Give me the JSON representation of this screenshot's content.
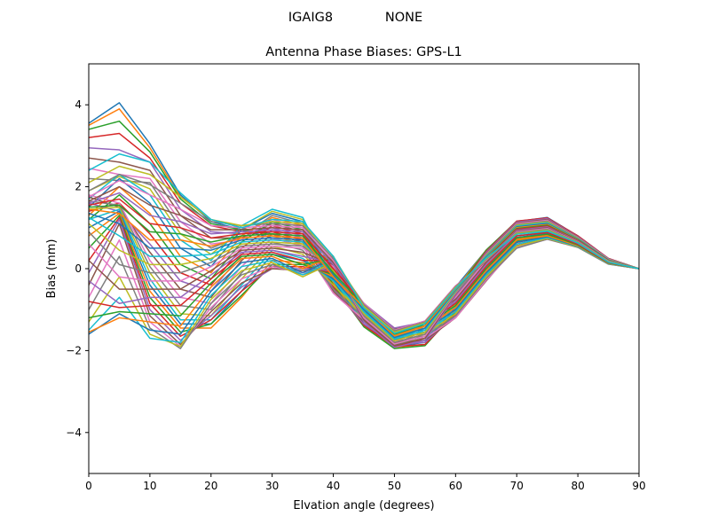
{
  "figure": {
    "suptitle_left": "IGAIG8",
    "suptitle_right": "NONE"
  },
  "chart_data": {
    "type": "line",
    "title": "Antenna Phase Biases: GPS-L1",
    "xlabel": "Elvation angle (degrees)",
    "ylabel": "Bias (mm)",
    "xlim": [
      0,
      90
    ],
    "ylim": [
      -5,
      5
    ],
    "xticks": [
      0,
      10,
      20,
      30,
      40,
      50,
      60,
      70,
      80,
      90
    ],
    "yticks": [
      -4,
      -2,
      0,
      2,
      4
    ],
    "ytick_labels": [
      "−4",
      "−2",
      "0",
      "2",
      "4"
    ],
    "grid": false,
    "legend": "none",
    "x": [
      0,
      5,
      10,
      15,
      20,
      25,
      30,
      35,
      40,
      45,
      50,
      55,
      60,
      65,
      70,
      75,
      80,
      85,
      90
    ],
    "colors": [
      "#1f77b4",
      "#ff7f0e",
      "#2ca02c",
      "#d62728",
      "#9467bd",
      "#8c564b",
      "#e377c2",
      "#7f7f7f",
      "#bcbd22",
      "#17becf"
    ],
    "series": [
      {
        "values": [
          3.55,
          4.05,
          3.05,
          1.8,
          1.15,
          0.95,
          0.75,
          0.55,
          0.2,
          -0.9,
          -1.5,
          -1.3,
          -0.45,
          0.45,
          1.15,
          1.25,
          0.8,
          0.25,
          0.0
        ]
      },
      {
        "values": [
          3.5,
          3.9,
          2.95,
          1.75,
          1.2,
          1.0,
          0.8,
          0.6,
          0.15,
          -0.95,
          -1.55,
          -1.35,
          -0.5,
          0.4,
          1.12,
          1.22,
          0.78,
          0.24,
          0.0
        ]
      },
      {
        "values": [
          3.4,
          3.6,
          2.85,
          1.7,
          1.1,
          0.95,
          0.85,
          0.65,
          0.1,
          -1.0,
          -1.6,
          -1.4,
          -0.55,
          0.35,
          1.08,
          1.18,
          0.76,
          0.23,
          0.0
        ]
      },
      {
        "values": [
          3.2,
          3.3,
          2.7,
          1.6,
          1.05,
          0.9,
          0.9,
          0.7,
          0.05,
          -1.05,
          -1.65,
          -1.45,
          -0.6,
          0.3,
          1.04,
          1.14,
          0.74,
          0.22,
          0.0
        ]
      },
      {
        "values": [
          2.95,
          2.9,
          2.6,
          1.45,
          0.9,
          0.85,
          1.0,
          0.8,
          0.0,
          -1.1,
          -1.7,
          -1.5,
          -0.65,
          0.25,
          1.0,
          1.1,
          0.72,
          0.21,
          0.0
        ]
      },
      {
        "values": [
          2.7,
          2.6,
          2.4,
          1.3,
          0.75,
          0.75,
          1.1,
          0.9,
          -0.05,
          -1.15,
          -1.75,
          -1.55,
          -0.7,
          0.2,
          0.96,
          1.06,
          0.7,
          0.2,
          0.0
        ]
      },
      {
        "values": [
          2.45,
          2.3,
          2.2,
          1.15,
          0.6,
          0.7,
          1.2,
          1.0,
          -0.1,
          -1.2,
          -1.8,
          -1.6,
          -0.75,
          0.15,
          0.92,
          1.02,
          0.68,
          0.19,
          0.0
        ]
      },
      {
        "values": [
          2.2,
          2.15,
          2.1,
          1.0,
          0.5,
          0.8,
          1.3,
          1.1,
          -0.15,
          -1.25,
          -1.82,
          -1.65,
          -0.8,
          0.1,
          0.88,
          0.98,
          0.66,
          0.18,
          0.0
        ]
      },
      {
        "values": [
          1.9,
          2.25,
          1.95,
          0.85,
          0.35,
          0.95,
          1.4,
          1.2,
          -0.2,
          -1.3,
          -1.85,
          -1.7,
          -0.85,
          0.05,
          0.84,
          0.94,
          0.64,
          0.17,
          0.0
        ]
      },
      {
        "values": [
          1.7,
          2.3,
          1.8,
          0.7,
          0.2,
          1.05,
          1.45,
          1.25,
          -0.25,
          -1.35,
          -1.88,
          -1.75,
          -0.9,
          0.0,
          0.8,
          0.9,
          0.62,
          0.16,
          0.0
        ]
      },
      {
        "values": [
          1.5,
          2.2,
          1.6,
          0.5,
          0.05,
          0.95,
          1.35,
          1.15,
          -0.3,
          -1.38,
          -1.9,
          -1.8,
          -0.95,
          -0.05,
          0.76,
          0.86,
          0.6,
          0.15,
          0.0
        ]
      },
      {
        "values": [
          1.3,
          2.0,
          1.35,
          0.3,
          -0.1,
          0.8,
          1.25,
          1.05,
          -0.35,
          -1.4,
          -1.92,
          -1.85,
          -1.0,
          -0.1,
          0.72,
          0.82,
          0.58,
          0.14,
          0.0
        ]
      },
      {
        "values": [
          1.2,
          1.8,
          1.1,
          0.1,
          -0.25,
          0.65,
          1.15,
          0.95,
          -0.4,
          -1.42,
          -1.95,
          -1.88,
          -1.05,
          -0.15,
          0.68,
          0.8,
          0.56,
          0.13,
          0.0
        ]
      },
      {
        "values": [
          1.4,
          1.6,
          0.85,
          -0.1,
          -0.4,
          0.5,
          1.05,
          0.85,
          -0.45,
          -1.38,
          -1.9,
          -1.85,
          -1.1,
          -0.2,
          0.64,
          0.78,
          0.55,
          0.13,
          0.0
        ]
      },
      {
        "values": [
          1.6,
          1.4,
          0.6,
          -0.3,
          -0.55,
          0.35,
          0.95,
          0.75,
          -0.5,
          -1.35,
          -1.85,
          -1.8,
          -1.15,
          -0.25,
          0.6,
          0.76,
          0.54,
          0.12,
          0.0
        ]
      },
      {
        "values": [
          1.75,
          1.5,
          0.4,
          -0.5,
          -0.7,
          0.2,
          0.85,
          0.65,
          -0.55,
          -1.3,
          -1.8,
          -1.75,
          -1.2,
          -0.3,
          0.56,
          0.74,
          0.53,
          0.12,
          0.0
        ]
      },
      {
        "values": [
          1.8,
          1.6,
          0.2,
          -0.7,
          -0.85,
          0.05,
          0.75,
          0.55,
          -0.6,
          -1.25,
          -1.75,
          -1.7,
          -1.2,
          -0.28,
          0.52,
          0.72,
          0.52,
          0.11,
          0.0
        ]
      },
      {
        "values": [
          1.65,
          1.55,
          0.05,
          -0.9,
          -1.0,
          -0.1,
          0.65,
          0.45,
          -0.5,
          -1.2,
          -1.7,
          -1.65,
          -1.15,
          -0.24,
          0.5,
          0.72,
          0.52,
          0.11,
          0.0
        ]
      },
      {
        "values": [
          1.45,
          1.5,
          -0.1,
          -1.1,
          -1.15,
          -0.25,
          0.55,
          0.35,
          -0.4,
          -1.15,
          -1.65,
          -1.6,
          -1.1,
          -0.2,
          0.55,
          0.74,
          0.53,
          0.12,
          0.0
        ]
      },
      {
        "values": [
          1.2,
          1.45,
          -0.25,
          -1.25,
          -1.25,
          -0.4,
          0.45,
          0.25,
          -0.3,
          -1.1,
          -1.6,
          -1.55,
          -1.05,
          -0.15,
          0.6,
          0.76,
          0.54,
          0.12,
          0.0
        ]
      },
      {
        "values": [
          1.0,
          1.4,
          -0.4,
          -1.35,
          -1.35,
          -0.55,
          0.35,
          0.2,
          -0.25,
          -1.05,
          -1.55,
          -1.5,
          -1.0,
          -0.1,
          0.65,
          0.78,
          0.55,
          0.13,
          0.0
        ]
      },
      {
        "values": [
          0.8,
          1.35,
          -0.55,
          -1.45,
          -1.45,
          -0.7,
          0.2,
          0.15,
          -0.2,
          -1.0,
          -1.5,
          -1.45,
          -0.95,
          -0.05,
          0.7,
          0.8,
          0.56,
          0.13,
          0.0
        ]
      },
      {
        "values": [
          0.5,
          1.3,
          -0.7,
          -1.55,
          -1.35,
          -0.65,
          0.1,
          0.1,
          -0.15,
          -0.95,
          -1.48,
          -1.4,
          -0.9,
          0.0,
          0.75,
          0.84,
          0.58,
          0.14,
          0.0
        ]
      },
      {
        "values": [
          0.2,
          1.25,
          -0.85,
          -1.65,
          -1.25,
          -0.55,
          0.05,
          0.05,
          -0.1,
          -0.9,
          -1.45,
          -1.35,
          -0.85,
          0.05,
          0.8,
          0.88,
          0.6,
          0.15,
          0.0
        ]
      },
      {
        "values": [
          -0.1,
          1.2,
          -1.0,
          -1.75,
          -1.15,
          -0.45,
          0.0,
          0.0,
          -0.05,
          -0.85,
          -1.45,
          -1.3,
          -0.8,
          0.1,
          0.85,
          0.92,
          0.62,
          0.16,
          0.0
        ]
      },
      {
        "values": [
          -0.4,
          1.1,
          -1.15,
          -1.85,
          -1.05,
          -0.35,
          0.0,
          -0.05,
          0.0,
          -0.85,
          -1.5,
          -1.3,
          -0.75,
          0.15,
          0.9,
          0.96,
          0.64,
          0.17,
          0.0
        ]
      },
      {
        "values": [
          -0.7,
          0.7,
          -1.3,
          -1.9,
          -0.95,
          -0.25,
          0.05,
          -0.1,
          0.05,
          -0.9,
          -1.55,
          -1.35,
          -0.7,
          0.2,
          0.95,
          1.0,
          0.66,
          0.18,
          0.0
        ]
      },
      {
        "values": [
          -1.0,
          0.3,
          -1.45,
          -1.95,
          -0.85,
          -0.15,
          0.1,
          -0.15,
          0.1,
          -0.95,
          -1.6,
          -1.4,
          -0.65,
          0.25,
          1.0,
          1.04,
          0.68,
          0.19,
          0.0
        ]
      },
      {
        "values": [
          -1.3,
          -0.2,
          -1.6,
          -1.9,
          -0.75,
          -0.05,
          0.15,
          -0.2,
          0.15,
          -1.0,
          -1.65,
          -1.45,
          -0.6,
          0.3,
          1.05,
          1.08,
          0.7,
          0.2,
          0.0
        ]
      },
      {
        "values": [
          -1.5,
          -0.7,
          -1.7,
          -1.8,
          -0.65,
          0.05,
          0.2,
          -0.15,
          0.2,
          -1.05,
          -1.7,
          -1.5,
          -0.55,
          0.35,
          1.1,
          1.12,
          0.72,
          0.21,
          0.0
        ]
      },
      {
        "values": [
          -1.6,
          -1.1,
          -1.5,
          -1.6,
          -0.55,
          0.15,
          0.25,
          -0.1,
          0.25,
          -1.1,
          -1.75,
          -1.55,
          -0.5,
          0.4,
          1.12,
          1.16,
          0.74,
          0.22,
          0.0
        ]
      },
      {
        "values": [
          -1.55,
          -1.2,
          -1.3,
          -1.4,
          -0.45,
          0.25,
          0.3,
          0.0,
          0.3,
          -1.15,
          -1.8,
          -1.6,
          -0.5,
          0.45,
          1.14,
          1.2,
          0.76,
          0.23,
          0.0
        ]
      },
      {
        "values": [
          -1.2,
          -1.05,
          -1.1,
          -1.15,
          -0.35,
          0.3,
          0.35,
          0.1,
          0.25,
          -1.2,
          -1.85,
          -1.65,
          -0.55,
          0.45,
          1.16,
          1.22,
          0.78,
          0.24,
          0.0
        ]
      },
      {
        "values": [
          -0.8,
          -0.95,
          -0.9,
          -0.9,
          -0.25,
          0.35,
          0.4,
          0.2,
          0.2,
          -1.25,
          -1.9,
          -1.7,
          -0.6,
          0.42,
          1.16,
          1.24,
          0.8,
          0.25,
          0.0
        ]
      },
      {
        "values": [
          -0.3,
          -0.85,
          -0.7,
          -0.7,
          -0.15,
          0.4,
          0.45,
          0.3,
          0.15,
          -1.3,
          -1.92,
          -1.75,
          -0.65,
          0.4,
          1.14,
          1.22,
          0.78,
          0.24,
          0.0
        ]
      },
      {
        "values": [
          0.2,
          -0.5,
          -0.5,
          -0.5,
          -0.05,
          0.45,
          0.5,
          0.4,
          0.1,
          -1.25,
          -1.88,
          -1.7,
          -0.62,
          0.38,
          1.12,
          1.2,
          0.77,
          0.23,
          0.0
        ]
      },
      {
        "values": [
          0.6,
          -0.2,
          -0.3,
          -0.3,
          0.05,
          0.5,
          0.55,
          0.5,
          0.05,
          -1.2,
          -1.84,
          -1.65,
          -0.6,
          0.36,
          1.1,
          1.18,
          0.76,
          0.23,
          0.0
        ]
      },
      {
        "values": [
          0.9,
          0.1,
          -0.1,
          -0.1,
          0.15,
          0.55,
          0.6,
          0.55,
          0.0,
          -1.15,
          -1.8,
          -1.6,
          -0.58,
          0.34,
          1.08,
          1.16,
          0.75,
          0.22,
          0.0
        ]
      },
      {
        "values": [
          1.1,
          0.45,
          0.1,
          0.1,
          0.25,
          0.6,
          0.65,
          0.6,
          -0.05,
          -1.1,
          -1.76,
          -1.55,
          -0.56,
          0.32,
          1.06,
          1.14,
          0.74,
          0.22,
          0.0
        ]
      },
      {
        "values": [
          1.25,
          0.8,
          0.3,
          0.3,
          0.35,
          0.65,
          0.7,
          0.65,
          -0.1,
          -1.05,
          -1.72,
          -1.5,
          -0.54,
          0.3,
          1.04,
          1.12,
          0.73,
          0.21,
          0.0
        ]
      },
      {
        "values": [
          1.35,
          1.1,
          0.5,
          0.5,
          0.45,
          0.7,
          0.75,
          0.7,
          -0.15,
          -1.0,
          -1.68,
          -1.45,
          -0.52,
          0.28,
          1.02,
          1.1,
          0.72,
          0.21,
          0.0
        ]
      },
      {
        "values": [
          1.45,
          1.35,
          0.7,
          0.7,
          0.55,
          0.75,
          0.8,
          0.75,
          -0.2,
          -0.95,
          -1.64,
          -1.4,
          -0.5,
          0.26,
          1.0,
          1.08,
          0.71,
          0.2,
          0.0
        ]
      },
      {
        "values": [
          1.5,
          1.55,
          0.9,
          0.85,
          0.65,
          0.8,
          0.85,
          0.8,
          -0.1,
          -0.9,
          -1.6,
          -1.35,
          -0.48,
          0.24,
          0.98,
          1.06,
          0.7,
          0.2,
          0.0
        ]
      },
      {
        "values": [
          1.55,
          1.7,
          1.1,
          1.0,
          0.75,
          0.85,
          0.9,
          0.85,
          0.0,
          -0.88,
          -1.56,
          -1.32,
          -0.46,
          0.22,
          0.96,
          1.04,
          0.69,
          0.19,
          0.0
        ]
      },
      {
        "values": [
          1.6,
          1.85,
          1.3,
          1.15,
          0.85,
          0.9,
          0.95,
          0.9,
          0.1,
          -0.86,
          -1.52,
          -1.3,
          -0.44,
          0.2,
          0.94,
          1.02,
          0.68,
          0.19,
          0.0
        ]
      },
      {
        "values": [
          1.65,
          2.0,
          1.55,
          1.3,
          0.95,
          0.95,
          1.0,
          0.95,
          0.15,
          -0.85,
          -1.5,
          -1.28,
          -0.42,
          0.18,
          0.92,
          1.0,
          0.67,
          0.18,
          0.0
        ]
      },
      {
        "values": [
          1.75,
          2.15,
          1.8,
          1.45,
          1.05,
          1.0,
          1.05,
          1.0,
          0.2,
          -0.85,
          -1.5,
          -1.28,
          -0.42,
          0.2,
          0.9,
          0.98,
          0.66,
          0.18,
          0.0
        ]
      },
      {
        "values": [
          1.9,
          2.3,
          2.05,
          1.6,
          1.15,
          1.05,
          1.1,
          1.05,
          0.25,
          -0.88,
          -1.52,
          -1.3,
          -0.44,
          0.22,
          0.88,
          0.96,
          0.65,
          0.17,
          0.0
        ]
      },
      {
        "values": [
          2.1,
          2.5,
          2.3,
          1.75,
          1.2,
          1.05,
          1.15,
          1.1,
          0.3,
          -0.92,
          -1.55,
          -1.32,
          -0.46,
          0.24,
          0.86,
          0.94,
          0.64,
          0.17,
          0.0
        ]
      },
      {
        "values": [
          2.4,
          2.8,
          2.6,
          1.85,
          1.2,
          1.0,
          1.2,
          1.15,
          0.3,
          -0.96,
          -1.58,
          -1.34,
          -0.48,
          0.26,
          0.84,
          0.92,
          0.63,
          0.16,
          0.0
        ]
      }
    ]
  }
}
